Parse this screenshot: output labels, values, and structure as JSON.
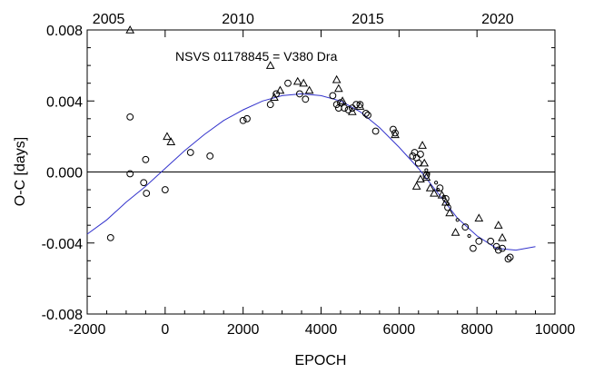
{
  "chart_data": {
    "type": "scatter",
    "title": "",
    "annotation": "NSVS 01178845 = V380 Dra",
    "xlabel": "EPOCH",
    "ylabel": "O-C [days]",
    "xlim": [
      -2000,
      10000
    ],
    "ylim": [
      -0.008,
      0.008
    ],
    "x_ticks": [
      -2000,
      0,
      2000,
      4000,
      6000,
      8000,
      10000
    ],
    "x_tick_labels": [
      "-2000",
      "0",
      "2000",
      "4000",
      "6000",
      "8000",
      "10000"
    ],
    "y_ticks": [
      -0.008,
      -0.004,
      0.0,
      0.004,
      0.008
    ],
    "y_tick_labels": [
      "-0.008",
      "-0.004",
      "0.000",
      "0.004",
      "0.008"
    ],
    "top_axis": {
      "label_years": [
        "2005",
        "2010",
        "2015",
        "2020"
      ],
      "label_epochs": [
        -1450,
        1870,
        5200,
        8530
      ]
    },
    "grid": false,
    "zero_line": 0.0,
    "series": [
      {
        "marker": "circle",
        "points": [
          [
            -1400,
            -0.0037
          ],
          [
            -900,
            0.0031
          ],
          [
            -900,
            -0.0001
          ],
          [
            -500,
            0.0007
          ],
          [
            -550,
            -0.0006
          ],
          [
            -480,
            -0.0012
          ],
          [
            0,
            -0.001
          ],
          [
            650,
            0.0011
          ],
          [
            1150,
            0.0009
          ],
          [
            2000,
            0.0029
          ],
          [
            2100,
            0.003
          ],
          [
            2700,
            0.0038
          ],
          [
            2850,
            0.0044
          ],
          [
            3150,
            0.005
          ],
          [
            3450,
            0.0044
          ],
          [
            3600,
            0.0041
          ],
          [
            4300,
            0.0043
          ],
          [
            4400,
            0.0038
          ],
          [
            4450,
            0.0036
          ],
          [
            4500,
            0.0039
          ],
          [
            4600,
            0.0036
          ],
          [
            4700,
            0.0035
          ],
          [
            4800,
            0.0036
          ],
          [
            4900,
            0.0038
          ],
          [
            5000,
            0.0038
          ],
          [
            5150,
            0.0033
          ],
          [
            5200,
            0.0032
          ],
          [
            5400,
            0.0023
          ],
          [
            5850,
            0.0024
          ],
          [
            5900,
            0.0022
          ],
          [
            6350,
            0.0009
          ],
          [
            6400,
            0.0011
          ],
          [
            6450,
            0.0008
          ],
          [
            6500,
            0.0005
          ],
          [
            6550,
            0.001
          ],
          [
            6700,
            -0.0002
          ],
          [
            7050,
            -0.0009
          ],
          [
            7200,
            -0.0015
          ],
          [
            7250,
            -0.002
          ],
          [
            7700,
            -0.0031
          ],
          [
            7900,
            -0.0043
          ],
          [
            8050,
            -0.0039
          ],
          [
            8350,
            -0.0039
          ],
          [
            8500,
            -0.0042
          ],
          [
            8550,
            -0.0044
          ],
          [
            8650,
            -0.0043
          ],
          [
            8800,
            -0.0049
          ],
          [
            8850,
            -0.0048
          ]
        ]
      },
      {
        "marker": "triangle",
        "points": [
          [
            -900,
            0.008
          ],
          [
            50,
            0.002
          ],
          [
            150,
            0.0017
          ],
          [
            2700,
            0.006
          ],
          [
            2800,
            0.0042
          ],
          [
            2950,
            0.0046
          ],
          [
            3400,
            0.0051
          ],
          [
            3550,
            0.005
          ],
          [
            3700,
            0.0046
          ],
          [
            4400,
            0.0052
          ],
          [
            4450,
            0.0047
          ],
          [
            4550,
            0.004
          ],
          [
            4800,
            0.0034
          ],
          [
            5000,
            0.0037
          ],
          [
            5900,
            0.0021
          ],
          [
            6450,
            -0.0008
          ],
          [
            6550,
            -0.0004
          ],
          [
            6600,
            0.0015
          ],
          [
            6650,
            0.0005
          ],
          [
            6700,
            -0.0003
          ],
          [
            6800,
            -0.0009
          ],
          [
            6900,
            -0.0012
          ],
          [
            7100,
            -0.0013
          ],
          [
            7200,
            -0.0017
          ],
          [
            7300,
            -0.0023
          ],
          [
            7450,
            -0.0034
          ],
          [
            8050,
            -0.0026
          ],
          [
            8550,
            -0.003
          ],
          [
            8650,
            -0.0037
          ]
        ]
      },
      {
        "marker": "dot",
        "points": [
          [
            6700,
            0.0001
          ],
          [
            6750,
            -0.0001
          ],
          [
            6950,
            -0.0006
          ],
          [
            7000,
            -0.001
          ],
          [
            7150,
            -0.0014
          ],
          [
            7250,
            -0.0018
          ],
          [
            7500,
            -0.0027
          ],
          [
            7800,
            -0.0036
          ]
        ]
      }
    ],
    "fit_curve": {
      "color": "#3333cc",
      "points": [
        [
          -2000,
          -0.0035
        ],
        [
          -1500,
          -0.0027
        ],
        [
          -1000,
          -0.0017
        ],
        [
          -500,
          -0.0008
        ],
        [
          0,
          0.0002
        ],
        [
          500,
          0.0012
        ],
        [
          1000,
          0.0021
        ],
        [
          1500,
          0.0029
        ],
        [
          2000,
          0.0035
        ],
        [
          2500,
          0.004
        ],
        [
          3000,
          0.0043
        ],
        [
          3500,
          0.0044
        ],
        [
          4000,
          0.0043
        ],
        [
          4500,
          0.004
        ],
        [
          5000,
          0.0034
        ],
        [
          5500,
          0.0025
        ],
        [
          6000,
          0.0014
        ],
        [
          6500,
          0.0002
        ],
        [
          7000,
          -0.0012
        ],
        [
          7500,
          -0.0026
        ],
        [
          8000,
          -0.0036
        ],
        [
          8500,
          -0.0043
        ],
        [
          9000,
          -0.0044
        ],
        [
          9500,
          -0.0042
        ]
      ]
    }
  }
}
